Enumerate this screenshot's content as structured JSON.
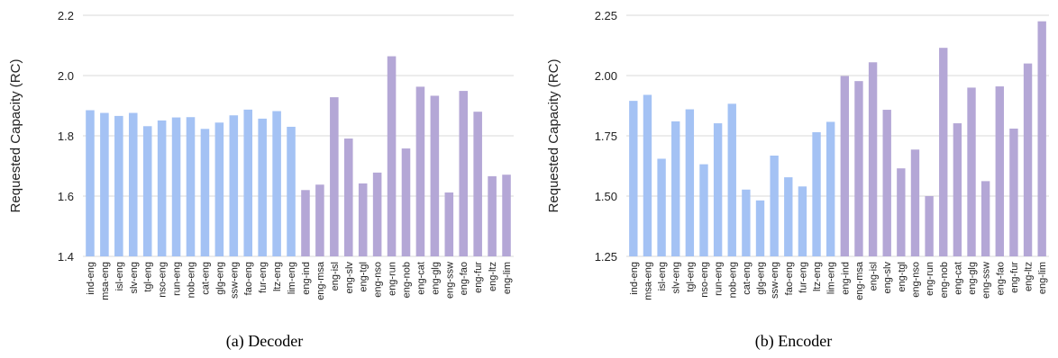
{
  "figure": {
    "captions": [
      "(a) Decoder",
      "(b) Encoder"
    ]
  },
  "colors": {
    "group_a": "#a4c2f4",
    "group_b": "#b4a7d6",
    "grid": "#d9d9d9",
    "text": "#222222"
  },
  "chart_data": [
    {
      "type": "bar",
      "ylabel": "Requested Capacity (RC)",
      "ylim": [
        1.4,
        2.2
      ],
      "yticks": [
        1.4,
        1.6,
        1.8,
        2.0,
        2.2
      ],
      "ytick_labels": [
        "1.4",
        "1.6",
        "1.8",
        "2.0",
        "2.2"
      ],
      "grid": true,
      "categories": [
        "ind-eng",
        "msa-eng",
        "isl-eng",
        "slv-eng",
        "tgl-eng",
        "nso-eng",
        "run-eng",
        "nob-eng",
        "cat-eng",
        "glg-eng",
        "ssw-eng",
        "fao-eng",
        "fur-eng",
        "ltz-eng",
        "lim-eng",
        "eng-ind",
        "eng-msa",
        "eng-isl",
        "eng-slv",
        "eng-tgl",
        "eng-nso",
        "eng-run",
        "eng-nob",
        "eng-cat",
        "eng-glg",
        "eng-ssw",
        "eng-fao",
        "eng-fur",
        "eng-ltz",
        "eng-lim"
      ],
      "values": [
        1.885,
        1.876,
        1.866,
        1.876,
        1.832,
        1.851,
        1.861,
        1.862,
        1.823,
        1.844,
        1.868,
        1.887,
        1.857,
        1.882,
        1.83,
        1.62,
        1.638,
        1.928,
        1.791,
        1.642,
        1.678,
        2.064,
        1.758,
        1.963,
        1.933,
        1.612,
        1.949,
        1.88,
        1.666,
        1.671
      ]
    },
    {
      "type": "bar",
      "ylabel": "Requested Capacity (RC)",
      "ylim": [
        1.25,
        2.25
      ],
      "yticks": [
        1.25,
        1.5,
        1.75,
        2.0,
        2.25
      ],
      "ytick_labels": [
        "1.25",
        "1.50",
        "1.75",
        "2.00",
        "2.25"
      ],
      "grid": true,
      "categories": [
        "ind-eng",
        "msa-eng",
        "isl-eng",
        "slv-eng",
        "tgl-eng",
        "nso-eng",
        "run-eng",
        "nob-eng",
        "cat-eng",
        "glg-eng",
        "ssw-eng",
        "fao-eng",
        "fur-eng",
        "ltz-eng",
        "lim-eng",
        "eng-ind",
        "eng-msa",
        "eng-isl",
        "eng-slv",
        "eng-tgl",
        "eng-nso",
        "eng-run",
        "eng-nob",
        "eng-cat",
        "eng-glg",
        "eng-ssw",
        "eng-fao",
        "eng-fur",
        "eng-ltz",
        "eng-lim"
      ],
      "values": [
        1.895,
        1.92,
        1.655,
        1.81,
        1.86,
        1.632,
        1.802,
        1.883,
        1.527,
        1.482,
        1.668,
        1.578,
        1.54,
        1.765,
        1.808,
        1.998,
        1.977,
        2.055,
        1.858,
        1.615,
        1.693,
        1.5,
        2.115,
        1.802,
        1.95,
        1.562,
        1.955,
        1.78,
        2.05,
        2.225
      ]
    }
  ]
}
